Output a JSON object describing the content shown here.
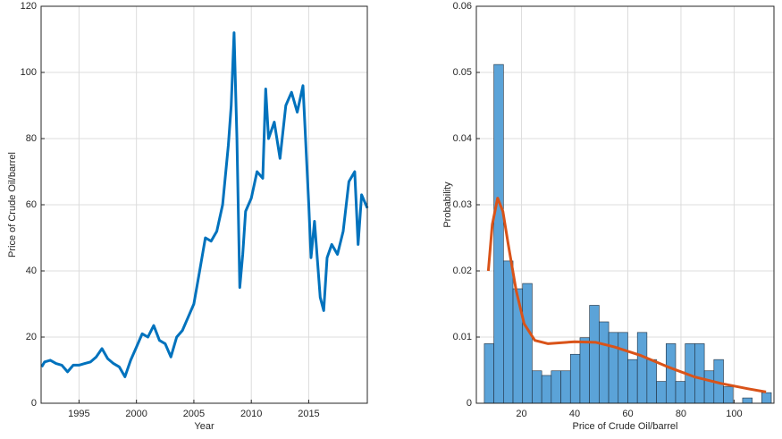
{
  "chart_data": [
    {
      "type": "line",
      "xlabel": "Year",
      "ylabel": "Price of Crude Oil/barrel",
      "x": [
        1991.75,
        1992,
        1992.5,
        1993,
        1993.5,
        1994,
        1994.5,
        1995,
        1995.5,
        1996,
        1996.5,
        1997,
        1997.5,
        1998,
        1998.5,
        1999,
        1999.5,
        2000,
        2000.5,
        2001,
        2001.5,
        2002,
        2002.5,
        2003,
        2003.5,
        2004,
        2004.5,
        2005,
        2005.5,
        2006,
        2006.5,
        2007,
        2007.5,
        2008,
        2008.25,
        2008.5,
        2008.75,
        2009,
        2009.25,
        2009.5,
        2010,
        2010.5,
        2011,
        2011.25,
        2011.5,
        2012,
        2012.5,
        2013,
        2013.5,
        2014,
        2014.5,
        2015,
        2015.2,
        2015.5,
        2016,
        2016.3,
        2016.6,
        2017,
        2017.5,
        2018,
        2018.5,
        2019,
        2019.3,
        2019.6,
        2020.1
      ],
      "values": [
        11,
        12.5,
        13,
        12,
        11.5,
        9.5,
        11.5,
        11.5,
        12,
        12.5,
        14,
        16.5,
        13.5,
        12,
        11,
        8,
        13,
        17,
        21,
        20,
        23.5,
        19,
        18,
        14,
        20,
        22,
        26,
        30,
        40,
        50,
        49,
        52,
        60,
        78,
        90,
        112,
        80,
        35,
        45,
        58,
        62,
        70,
        68,
        95,
        80,
        85,
        74,
        90,
        94,
        88,
        96,
        60,
        44,
        55,
        32,
        28,
        44,
        48,
        45,
        52,
        67,
        70,
        48,
        63,
        59
      ],
      "color": "#0072bd",
      "xlim": [
        1991.7,
        2020.1
      ],
      "xticks": [
        1995,
        2000,
        2005,
        2010,
        2015
      ],
      "ylim": [
        0,
        120
      ],
      "yticks": [
        0,
        20,
        40,
        60,
        80,
        100,
        120
      ],
      "grid": true
    },
    {
      "type": "histogram",
      "xlabel": "Price of Crude Oil/barrel",
      "ylabel": "Probability",
      "bins": [
        6,
        9.6,
        13.2,
        16.8,
        20.4,
        24,
        27.6,
        31.2,
        34.8,
        38.4,
        42,
        45.6,
        49.2,
        52.8,
        56.4,
        60,
        63.6,
        67.2,
        70.8,
        74.4,
        78,
        81.6,
        85.2,
        88.8,
        92.4,
        96,
        99.6,
        103.2,
        106.8,
        110.4,
        114
      ],
      "values": [
        0.009,
        0.0512,
        0.0215,
        0.0173,
        0.0181,
        0.0049,
        0.0042,
        0.0049,
        0.0049,
        0.0074,
        0.0099,
        0.0148,
        0.0123,
        0.0107,
        0.0107,
        0.0066,
        0.0107,
        0.0066,
        0.0033,
        0.009,
        0.0033,
        0.009,
        0.009,
        0.0049,
        0.0066,
        0.0025,
        0,
        0.0008,
        0,
        0.0016
      ],
      "color": "#5ba3d8",
      "curve": {
        "x": [
          7.5,
          9,
          11,
          13,
          15,
          18,
          21,
          25,
          30,
          40,
          48,
          55,
          65,
          75,
          85,
          95,
          105,
          112
        ],
        "values": [
          0.02,
          0.027,
          0.031,
          0.029,
          0.024,
          0.017,
          0.012,
          0.0095,
          0.009,
          0.0093,
          0.0092,
          0.0085,
          0.0072,
          0.0055,
          0.004,
          0.003,
          0.0022,
          0.0017
        ],
        "color": "#d95319"
      },
      "xlim": [
        3,
        115
      ],
      "xticks": [
        20,
        40,
        60,
        80,
        100
      ],
      "ylim": [
        0,
        0.06
      ],
      "yticks": [
        0,
        0.01,
        0.02,
        0.03,
        0.04,
        0.05,
        0.06
      ],
      "grid": true
    }
  ]
}
